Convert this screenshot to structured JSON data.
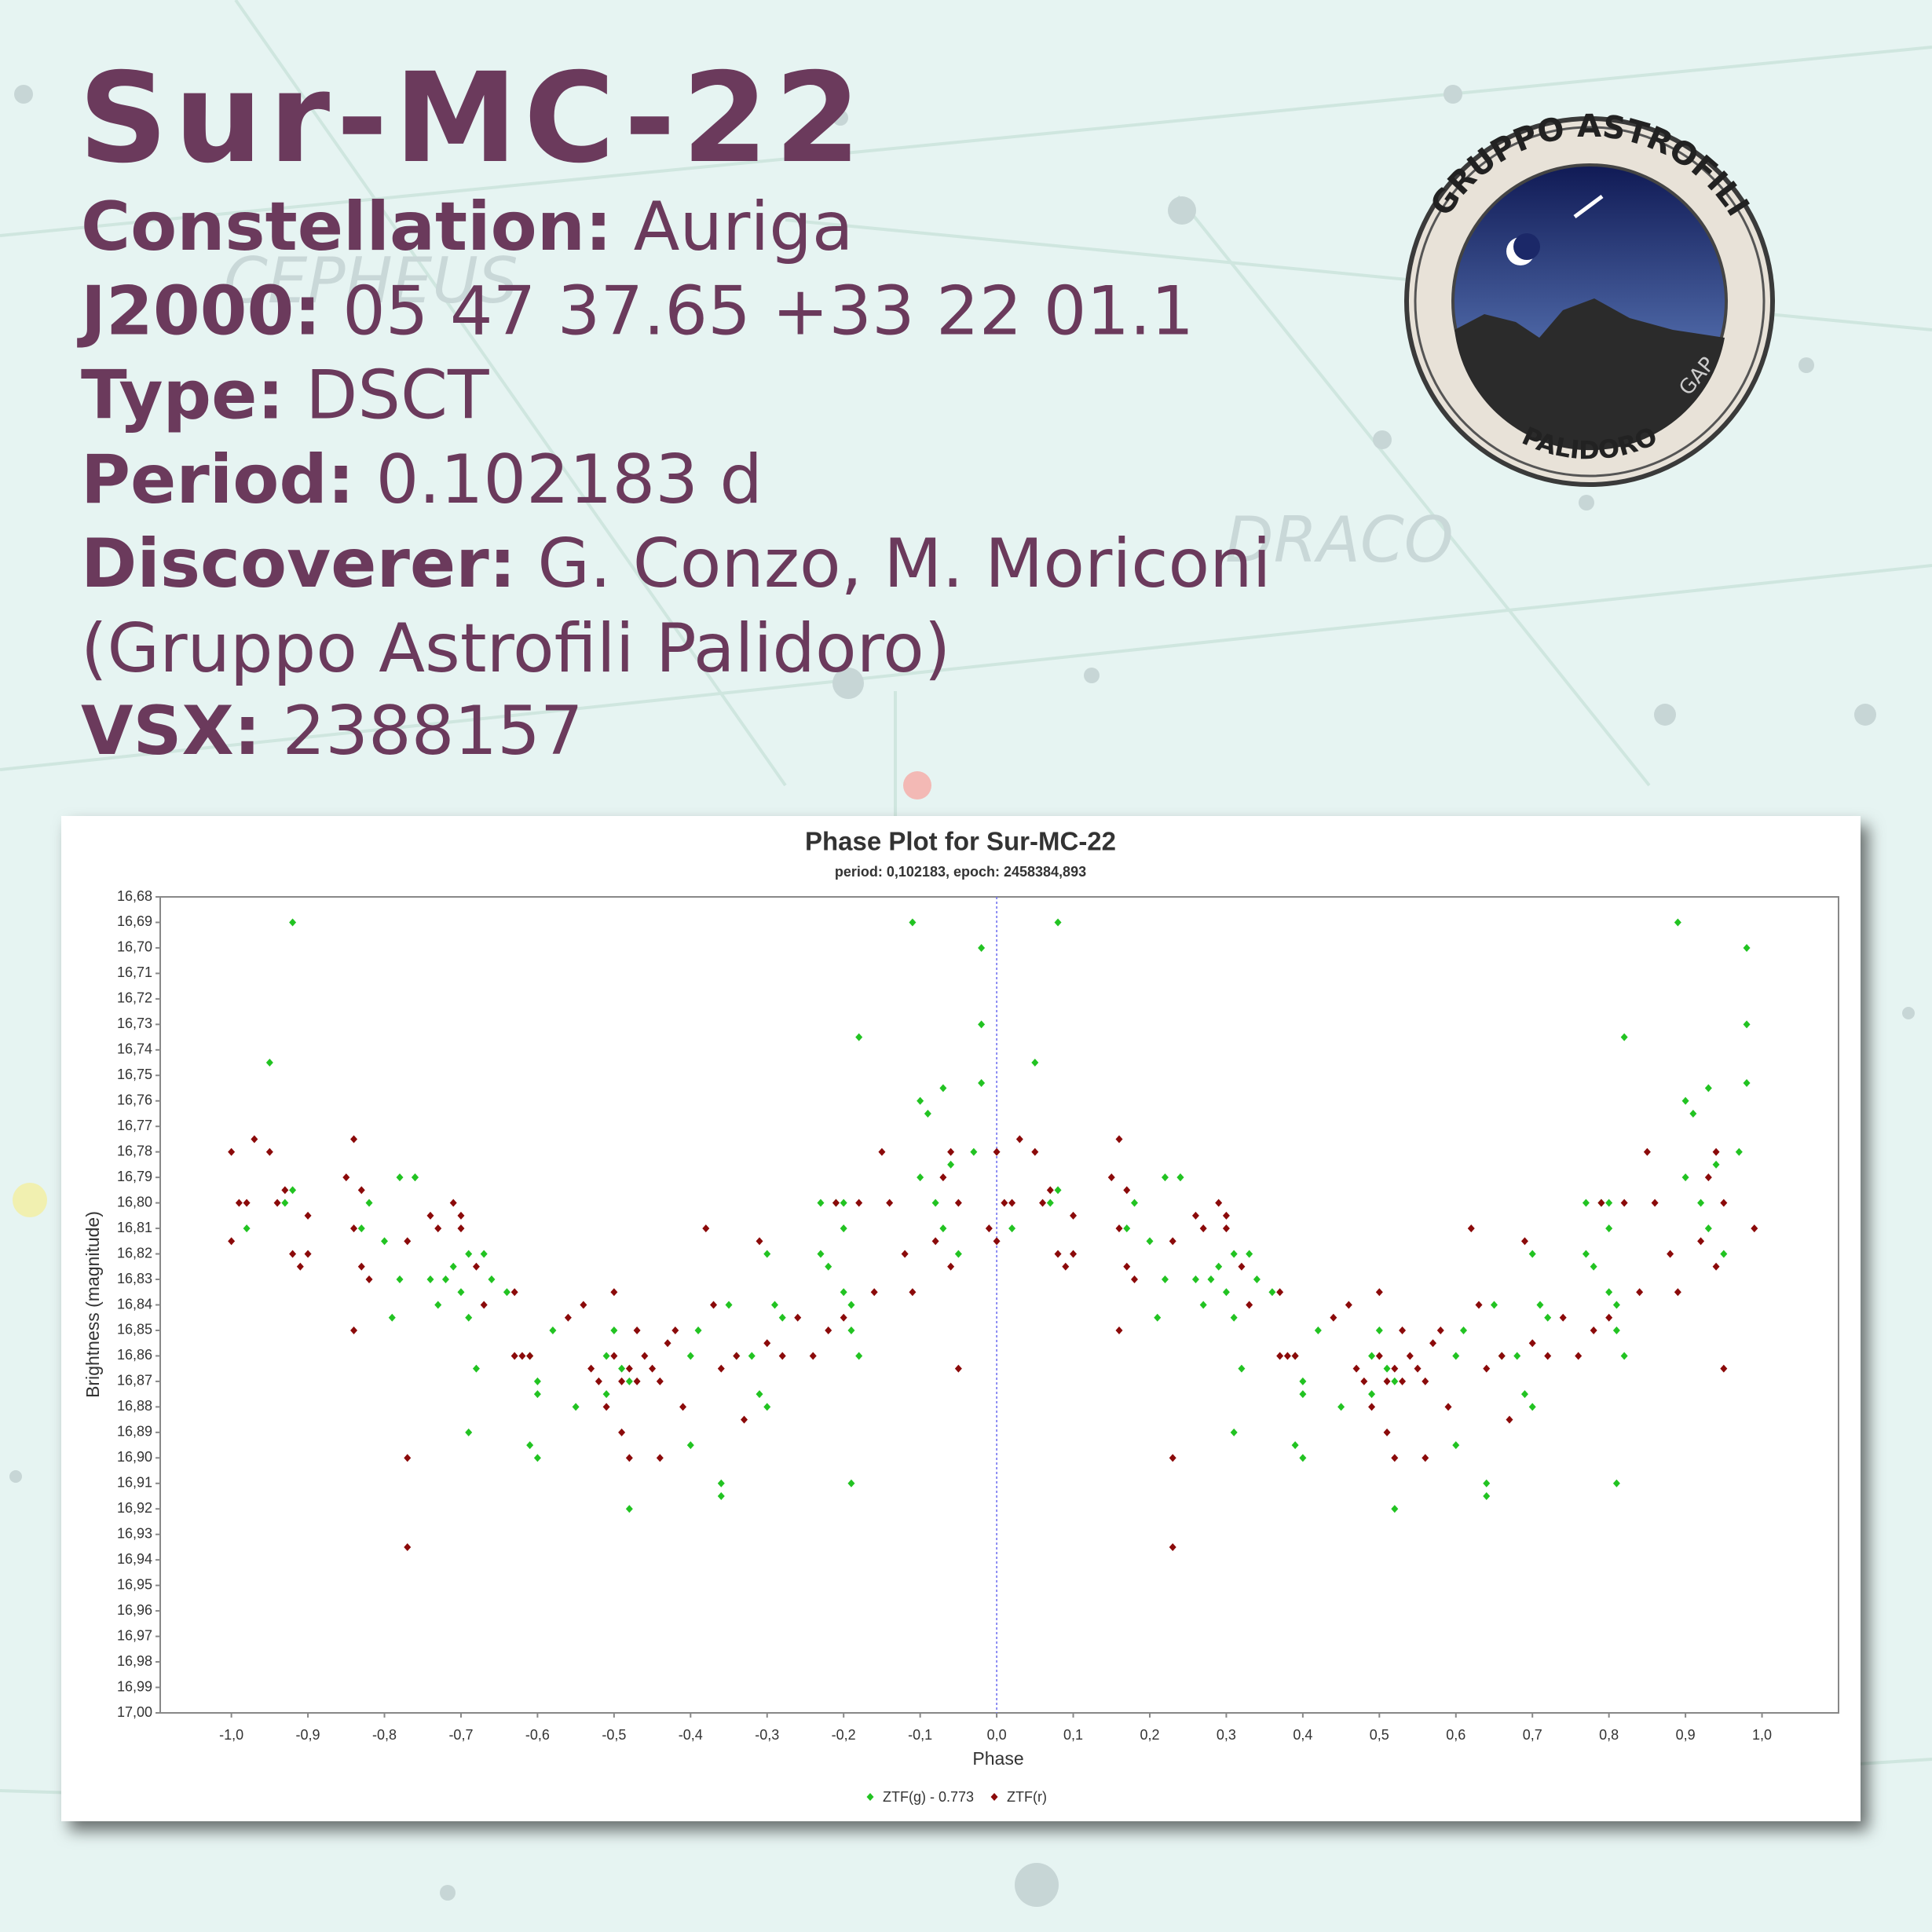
{
  "header": {
    "title": "Sur-MC-22",
    "fields": [
      {
        "label": "Constellation:",
        "value": "Auriga"
      },
      {
        "label": "J2000:",
        "value": "05 47 37.65 +33 22 01.1"
      },
      {
        "label": "Type:",
        "value": "DSCT"
      },
      {
        "label": "Period:",
        "value": "0.102183 d"
      },
      {
        "label": "Discoverer:",
        "value": "G. Conzo, M. Moriconi"
      }
    ],
    "affiliation": "(Gruppo Astrofili Palidoro)",
    "vsx": {
      "label": "VSX:",
      "value": "2388157"
    }
  },
  "logo": {
    "top_text": "GRUPPO ASTROFILI",
    "bottom_text": "PALIDORO",
    "initials": "GAP"
  },
  "background_labels": [
    "CEPHEUS",
    "DRACO"
  ],
  "chart_data": {
    "type": "scatter",
    "title": "Phase Plot for Sur-MC-22",
    "subtitle": "period: 0,102183, epoch: 2458384,893",
    "x_label": "Phase",
    "y_label": "Brightness (magnitude)",
    "xlim": [
      -1.093,
      1.1
    ],
    "ylim": [
      17.0,
      16.68
    ],
    "marker_x": 0,
    "xticks": [
      {
        "value": -1.0,
        "label": "-1,0"
      },
      {
        "value": -0.9,
        "label": "-0,9"
      },
      {
        "value": -0.8,
        "label": "-0,8"
      },
      {
        "value": -0.7,
        "label": "-0,7"
      },
      {
        "value": -0.6,
        "label": "-0,6"
      },
      {
        "value": -0.5,
        "label": "-0,5"
      },
      {
        "value": -0.4,
        "label": "-0,4"
      },
      {
        "value": -0.3,
        "label": "-0,3"
      },
      {
        "value": -0.2,
        "label": "-0,2"
      },
      {
        "value": -0.1,
        "label": "-0,1"
      },
      {
        "value": 0,
        "label": "0,0"
      },
      {
        "value": 0.1,
        "label": "0,1"
      },
      {
        "value": 0.2,
        "label": "0,2"
      },
      {
        "value": 0.3,
        "label": "0,3"
      },
      {
        "value": 0.4,
        "label": "0,4"
      },
      {
        "value": 0.5,
        "label": "0,5"
      },
      {
        "value": 0.6,
        "label": "0,6"
      },
      {
        "value": 0.7,
        "label": "0,7"
      },
      {
        "value": 0.8,
        "label": "0,8"
      },
      {
        "value": 0.9,
        "label": "0,9"
      },
      {
        "value": 1.0,
        "label": "1,0"
      }
    ],
    "yticks": [
      {
        "value": 16.68,
        "label": "16,68"
      },
      {
        "value": 16.69,
        "label": "16,69"
      },
      {
        "value": 16.7,
        "label": "16,70"
      },
      {
        "value": 16.71,
        "label": "16,71"
      },
      {
        "value": 16.72,
        "label": "16,72"
      },
      {
        "value": 16.73,
        "label": "16,73"
      },
      {
        "value": 16.74,
        "label": "16,74"
      },
      {
        "value": 16.75,
        "label": "16,75"
      },
      {
        "value": 16.76,
        "label": "16,76"
      },
      {
        "value": 16.77,
        "label": "16,77"
      },
      {
        "value": 16.78,
        "label": "16,78"
      },
      {
        "value": 16.79,
        "label": "16,79"
      },
      {
        "value": 16.8,
        "label": "16,80"
      },
      {
        "value": 16.81,
        "label": "16,81"
      },
      {
        "value": 16.82,
        "label": "16,82"
      },
      {
        "value": 16.83,
        "label": "16,83"
      },
      {
        "value": 16.84,
        "label": "16,84"
      },
      {
        "value": 16.85,
        "label": "16,85"
      },
      {
        "value": 16.86,
        "label": "16,86"
      },
      {
        "value": 16.87,
        "label": "16,87"
      },
      {
        "value": 16.88,
        "label": "16,88"
      },
      {
        "value": 16.89,
        "label": "16,89"
      },
      {
        "value": 16.9,
        "label": "16,90"
      },
      {
        "value": 16.91,
        "label": "16,91"
      },
      {
        "value": 16.92,
        "label": "16,92"
      },
      {
        "value": 16.93,
        "label": "16,93"
      },
      {
        "value": 16.94,
        "label": "16,94"
      },
      {
        "value": 16.95,
        "label": "16,95"
      },
      {
        "value": 16.96,
        "label": "16,96"
      },
      {
        "value": 16.97,
        "label": "16,97"
      },
      {
        "value": 16.98,
        "label": "16,98"
      },
      {
        "value": 16.99,
        "label": "16,99"
      },
      {
        "value": 17.0,
        "label": "17,00"
      }
    ],
    "series": [
      {
        "name": "ZTF(g) - 0.773",
        "color": "#22c322",
        "x": [
          -0.92,
          -0.95,
          -0.92,
          -0.93,
          -0.98,
          -0.82,
          -0.83,
          -0.8,
          -0.78,
          -0.76,
          -0.78,
          -0.79,
          -0.76,
          -0.74,
          -0.73,
          -0.72,
          -0.71,
          -0.7,
          -0.69,
          -0.67,
          -0.69,
          -0.66,
          -0.64,
          -0.68,
          -0.69,
          -0.61,
          -0.6,
          -0.6,
          -0.61,
          -0.6,
          -0.58,
          -0.55,
          -0.51,
          -0.51,
          -0.5,
          -0.49,
          -0.48,
          -0.48,
          -0.4,
          -0.4,
          -0.39,
          -0.36,
          -0.36,
          -0.35,
          -0.34,
          -0.32,
          -0.31,
          -0.3,
          -0.3,
          -0.29,
          -0.28,
          -0.23,
          -0.23,
          -0.22,
          -0.21,
          -0.2,
          -0.2,
          -0.19,
          -0.19,
          -0.19,
          -0.18,
          -0.18,
          -0.2,
          -0.11,
          -0.1,
          -0.09,
          -0.08,
          -0.1,
          -0.07,
          -0.07,
          -0.06,
          -0.05,
          -0.03,
          -0.02,
          -0.02,
          -0.02,
          0.08,
          0.05,
          0.08,
          0.07,
          0.02,
          0.18,
          0.17,
          0.2,
          0.22,
          0.24,
          0.22,
          0.21,
          0.24,
          0.26,
          0.27,
          0.28,
          0.29,
          0.3,
          0.31,
          0.33,
          0.31,
          0.34,
          0.36,
          0.32,
          0.31,
          0.39,
          0.4,
          0.4,
          0.39,
          0.4,
          0.42,
          0.45,
          0.49,
          0.49,
          0.5,
          0.51,
          0.52,
          0.52,
          0.6,
          0.6,
          0.61,
          0.64,
          0.64,
          0.65,
          0.66,
          0.68,
          0.69,
          0.7,
          0.7,
          0.71,
          0.72,
          0.77,
          0.77,
          0.78,
          0.79,
          0.8,
          0.8,
          0.81,
          0.81,
          0.81,
          0.82,
          0.82,
          0.8,
          0.89,
          0.9,
          0.91,
          0.92,
          0.9,
          0.93,
          0.93,
          0.94,
          0.95,
          0.97,
          0.98,
          0.98,
          0.98
        ],
        "values": [
          16.69,
          16.745,
          16.795,
          16.8,
          16.81,
          16.8,
          16.81,
          16.815,
          16.79,
          16.79,
          16.83,
          16.845,
          16.79,
          16.83,
          16.84,
          16.83,
          16.825,
          16.835,
          16.82,
          16.82,
          16.845,
          16.83,
          16.835,
          16.865,
          16.89,
          16.86,
          16.87,
          16.875,
          16.895,
          16.9,
          16.85,
          16.88,
          16.86,
          16.875,
          16.85,
          16.865,
          16.92,
          16.87,
          16.895,
          16.86,
          16.85,
          16.91,
          16.915,
          16.84,
          16.86,
          16.86,
          16.875,
          16.88,
          16.82,
          16.84,
          16.845,
          16.82,
          16.8,
          16.825,
          16.8,
          16.81,
          16.835,
          16.85,
          16.84,
          16.91,
          16.86,
          16.735,
          16.8,
          16.69,
          16.76,
          16.765,
          16.8,
          16.79,
          16.755,
          16.81,
          16.785,
          16.82,
          16.78,
          16.7,
          16.73,
          16.753,
          16.69,
          16.745,
          16.795,
          16.8,
          16.81,
          16.8,
          16.81,
          16.815,
          16.79,
          16.79,
          16.83,
          16.845,
          16.79,
          16.83,
          16.84,
          16.83,
          16.825,
          16.835,
          16.82,
          16.82,
          16.845,
          16.83,
          16.835,
          16.865,
          16.89,
          16.86,
          16.87,
          16.875,
          16.895,
          16.9,
          16.85,
          16.88,
          16.86,
          16.875,
          16.85,
          16.865,
          16.92,
          16.87,
          16.895,
          16.86,
          16.85,
          16.91,
          16.915,
          16.84,
          16.86,
          16.86,
          16.875,
          16.88,
          16.82,
          16.84,
          16.845,
          16.82,
          16.8,
          16.825,
          16.8,
          16.81,
          16.835,
          16.85,
          16.84,
          16.91,
          16.86,
          16.735,
          16.8,
          16.69,
          16.76,
          16.765,
          16.8,
          16.79,
          16.755,
          16.81,
          16.785,
          16.82,
          16.78,
          16.7,
          16.73,
          16.753
        ]
      },
      {
        "name": "ZTF(r)",
        "color": "#8b0a0a",
        "x": [
          -1,
          -0.99,
          -0.98,
          -1,
          -0.97,
          -0.95,
          -0.94,
          -0.93,
          -0.92,
          -0.91,
          -0.9,
          -0.9,
          -0.85,
          -0.84,
          -0.84,
          -0.84,
          -0.83,
          -0.83,
          -0.82,
          -0.77,
          -0.77,
          -0.77,
          -0.74,
          -0.73,
          -0.71,
          -0.7,
          -0.7,
          -0.68,
          -0.67,
          -0.63,
          -0.63,
          -0.62,
          -0.61,
          -0.56,
          -0.54,
          -0.53,
          -0.52,
          -0.51,
          -0.5,
          -0.5,
          -0.49,
          -0.49,
          -0.48,
          -0.48,
          -0.47,
          -0.47,
          -0.46,
          -0.45,
          -0.44,
          -0.44,
          -0.43,
          -0.42,
          -0.41,
          -0.38,
          -0.37,
          -0.36,
          -0.34,
          -0.33,
          -0.31,
          -0.3,
          -0.28,
          -0.26,
          -0.24,
          -0.22,
          -0.21,
          -0.2,
          -0.18,
          -0.16,
          -0.15,
          -0.14,
          -0.12,
          -0.11,
          -0.08,
          -0.07,
          -0.06,
          -0.05,
          -0.06,
          -0.05,
          -0.01,
          0,
          0.01,
          0.02,
          0,
          0.03,
          0.05,
          0.06,
          0.07,
          0.08,
          0.09,
          0.1,
          0.1,
          0.15,
          0.16,
          0.16,
          0.16,
          0.17,
          0.17,
          0.18,
          0.23,
          0.23,
          0.23,
          0.26,
          0.27,
          0.29,
          0.3,
          0.3,
          0.32,
          0.33,
          0.37,
          0.37,
          0.38,
          0.39,
          0.44,
          0.46,
          0.47,
          0.48,
          0.49,
          0.5,
          0.5,
          0.51,
          0.51,
          0.52,
          0.52,
          0.53,
          0.53,
          0.54,
          0.55,
          0.56,
          0.56,
          0.57,
          0.58,
          0.59,
          0.62,
          0.63,
          0.64,
          0.66,
          0.67,
          0.69,
          0.7,
          0.72,
          0.74,
          0.76,
          0.78,
          0.79,
          0.8,
          0.82,
          0.84,
          0.85,
          0.86,
          0.88,
          0.89,
          0.92,
          0.93,
          0.94,
          0.95,
          0.94,
          0.95,
          0.99
        ],
        "values": [
          16.78,
          16.8,
          16.8,
          16.815,
          16.775,
          16.78,
          16.8,
          16.795,
          16.82,
          16.825,
          16.805,
          16.82,
          16.79,
          16.775,
          16.81,
          16.85,
          16.795,
          16.825,
          16.83,
          16.9,
          16.935,
          16.815,
          16.805,
          16.81,
          16.8,
          16.81,
          16.805,
          16.825,
          16.84,
          16.835,
          16.86,
          16.86,
          16.86,
          16.845,
          16.84,
          16.865,
          16.87,
          16.88,
          16.86,
          16.835,
          16.89,
          16.87,
          16.865,
          16.9,
          16.87,
          16.85,
          16.86,
          16.865,
          16.87,
          16.9,
          16.855,
          16.85,
          16.88,
          16.81,
          16.84,
          16.865,
          16.86,
          16.885,
          16.815,
          16.855,
          16.86,
          16.845,
          16.86,
          16.85,
          16.8,
          16.845,
          16.8,
          16.835,
          16.78,
          16.8,
          16.82,
          16.835,
          16.815,
          16.79,
          16.78,
          16.8,
          16.825,
          16.865,
          16.81,
          16.78,
          16.8,
          16.8,
          16.815,
          16.775,
          16.78,
          16.8,
          16.795,
          16.82,
          16.825,
          16.805,
          16.82,
          16.79,
          16.775,
          16.81,
          16.85,
          16.795,
          16.825,
          16.83,
          16.9,
          16.935,
          16.815,
          16.805,
          16.81,
          16.8,
          16.81,
          16.805,
          16.825,
          16.84,
          16.835,
          16.86,
          16.86,
          16.86,
          16.845,
          16.84,
          16.865,
          16.87,
          16.88,
          16.86,
          16.835,
          16.89,
          16.87,
          16.865,
          16.9,
          16.87,
          16.85,
          16.86,
          16.865,
          16.87,
          16.9,
          16.855,
          16.85,
          16.88,
          16.81,
          16.84,
          16.865,
          16.86,
          16.885,
          16.815,
          16.855,
          16.86,
          16.845,
          16.86,
          16.85,
          16.8,
          16.845,
          16.8,
          16.835,
          16.78,
          16.8,
          16.82,
          16.835,
          16.815,
          16.79,
          16.78,
          16.8,
          16.825,
          16.865,
          16.81
        ]
      }
    ]
  }
}
